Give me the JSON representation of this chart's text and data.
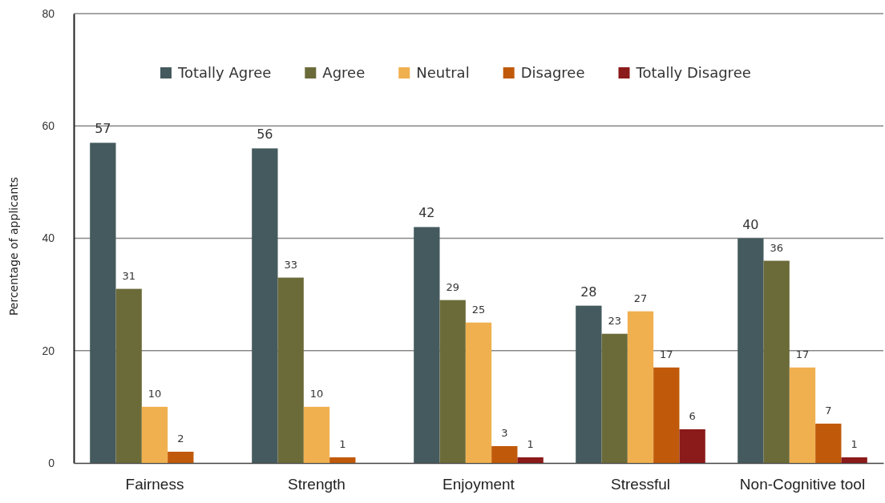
{
  "chart_data": {
    "type": "bar",
    "ylabel": "Percentage of applicants",
    "categories": [
      "Fairness",
      "Strength",
      "Enjoyment",
      "Stressful",
      "Non-Cognitive tool"
    ],
    "series": [
      {
        "name": "Totally Agree",
        "color": "#455a5e",
        "values": [
          57,
          56,
          42,
          28,
          40
        ]
      },
      {
        "name": "Agree",
        "color": "#6b6b3a",
        "values": [
          31,
          33,
          29,
          23,
          36
        ]
      },
      {
        "name": "Neutral",
        "color": "#f0b050",
        "values": [
          10,
          10,
          25,
          27,
          17
        ]
      },
      {
        "name": "Disagree",
        "color": "#c05a0a",
        "values": [
          2,
          1,
          3,
          17,
          7
        ]
      },
      {
        "name": "Totally Disagree",
        "color": "#8b1a1a",
        "values": [
          null,
          null,
          1,
          6,
          1
        ]
      }
    ],
    "ylim": [
      0,
      80
    ],
    "yticks": [
      0,
      20,
      40,
      60,
      80
    ],
    "grid": "y",
    "legend": "top",
    "data_labels": true
  }
}
